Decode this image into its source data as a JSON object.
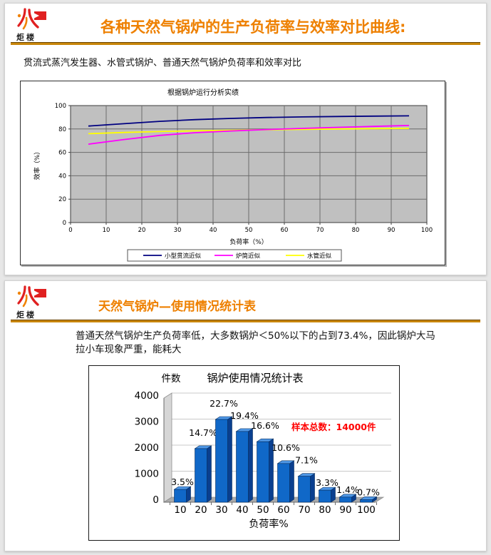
{
  "brand": {
    "name": "炬楼"
  },
  "colors": {
    "accent_orange": "#ee8000",
    "separator_gold": "#c8860a",
    "logo_red": "#e02020",
    "logo_orange": "#f08200",
    "plot_gray": "#c0c0c0",
    "series_blue": "#000080",
    "series_magenta": "#ff00ff",
    "series_yellow": "#ffff00",
    "bar_blue": "#1068c8",
    "annotation_red": "#ff0000"
  },
  "slide1": {
    "title": "各种天然气锅炉的生产负荷率与效率对比曲线:",
    "subtitle": "贯流式蒸汽发生器、水管式锅炉、普通天然气锅炉负荷率和效率对比"
  },
  "slide2": {
    "title": "天然气锅炉—使用情况统计表",
    "body": "普通天然气锅炉生产负荷率低，大多数锅炉＜50%以下的占到73.4%，因此锅炉大马拉小车现象严重，能耗大"
  },
  "chart_data": [
    {
      "type": "line",
      "title": "根据锅炉运行分析实绩",
      "xlabel": "负荷率（%）",
      "ylabel": "效率（%）",
      "xlim": [
        0,
        100
      ],
      "ylim": [
        0,
        100
      ],
      "x_ticks": [
        0,
        10,
        20,
        30,
        40,
        50,
        60,
        70,
        80,
        90,
        100
      ],
      "y_ticks": [
        0,
        20,
        40,
        60,
        80,
        100
      ],
      "grid": true,
      "plot_bg": "#c0c0c0",
      "legend_position": "bottom",
      "x": [
        5,
        15,
        25,
        35,
        45,
        55,
        65,
        75,
        85,
        95
      ],
      "series": [
        {
          "name": "小型贯流近似",
          "color": "#000080",
          "values": [
            82.5,
            84.5,
            86.5,
            88,
            89,
            89.8,
            90.3,
            90.7,
            91,
            91.2
          ]
        },
        {
          "name": "炉筒近似",
          "color": "#ff00ff",
          "values": [
            67,
            71,
            74.5,
            76.8,
            78.3,
            79.5,
            80.5,
            81.4,
            82.2,
            83
          ]
        },
        {
          "name": "水管近似",
          "color": "#ffff00",
          "values": [
            76,
            77,
            77.8,
            78.4,
            78.9,
            79.3,
            79.7,
            80,
            80.3,
            80.5
          ]
        }
      ]
    },
    {
      "type": "bar",
      "style": "3d",
      "title": "锅炉使用情况统计表",
      "ylabel": "件数",
      "xlabel": "负荷率%",
      "categories": [
        "10",
        "20",
        "30",
        "40",
        "50",
        "60",
        "70",
        "80",
        "90",
        "100"
      ],
      "values": [
        490,
        2058,
        3178,
        2716,
        2324,
        1484,
        994,
        462,
        196,
        98
      ],
      "percent_labels": [
        "3.5%",
        "14.7%",
        "22.7%",
        "19.4%",
        "16.6%",
        "10.6%",
        "7.1%",
        "3.3%",
        "1.4%",
        "0.7%"
      ],
      "annotation": "样本总数：14000件",
      "ylim": [
        0,
        4000
      ],
      "y_ticks": [
        0,
        1000,
        2000,
        3000,
        4000
      ],
      "bar_color": "#1068c8"
    }
  ]
}
